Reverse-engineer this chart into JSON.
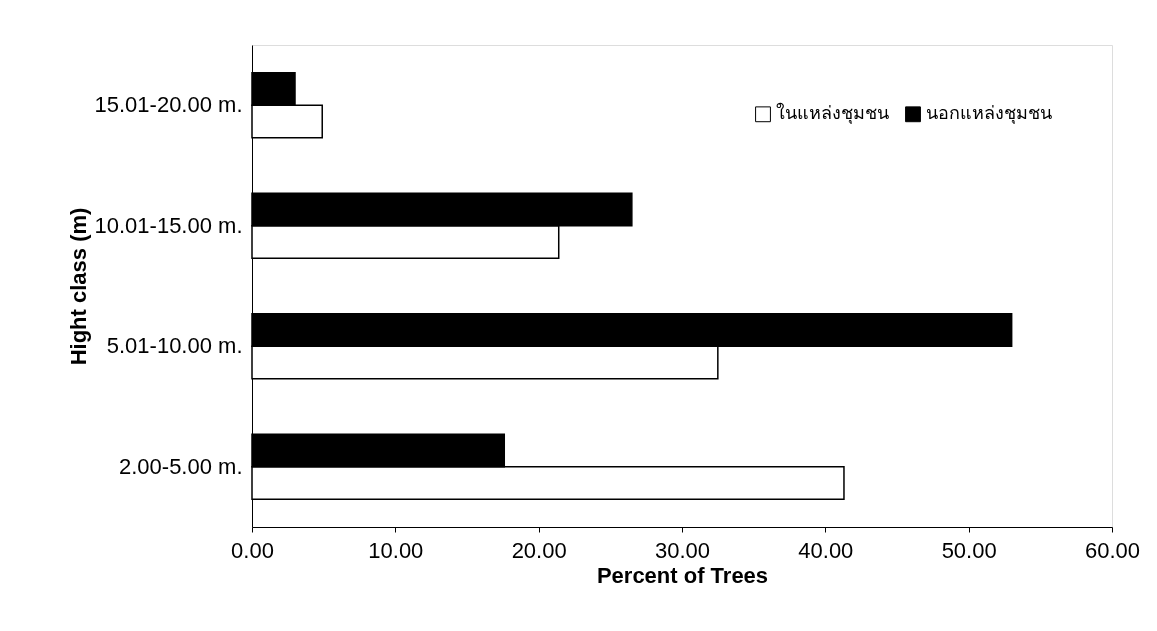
{
  "chart_data": {
    "type": "bar",
    "orientation": "horizontal",
    "xlabel": "Percent of Trees",
    "ylabel": "Hight class (m)",
    "categories": [
      "15.01-20.00 m.",
      "10.01-15.00 m.",
      "5.01-10.00 m.",
      "2.00-5.00 m."
    ],
    "series": [
      {
        "name": "ในแหล่งชุมชน",
        "color": "#ffffff",
        "values": [
          4.9,
          21.4,
          32.5,
          41.3
        ]
      },
      {
        "name": "นอกแหล่งชุมชน",
        "color": "#000000",
        "values": [
          3.0,
          26.5,
          53.0,
          17.6
        ]
      }
    ],
    "xlim": [
      0,
      60
    ],
    "xticks": [
      {
        "value": 0,
        "label": "0.00"
      },
      {
        "value": 10,
        "label": "10.00"
      },
      {
        "value": 20,
        "label": "20.00"
      },
      {
        "value": 30,
        "label": "30.00"
      },
      {
        "value": 40,
        "label": "40.00"
      },
      {
        "value": 50,
        "label": "50.00"
      },
      {
        "value": 60,
        "label": "60.00"
      }
    ],
    "grid": false,
    "legend": "top right"
  }
}
